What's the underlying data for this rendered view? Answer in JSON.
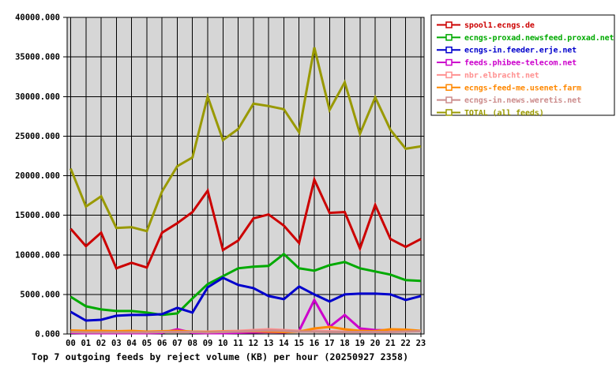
{
  "chart_data": {
    "type": "line",
    "title": "Top 7 outgoing feeds by reject volume (KB) per hour (20250927 2358)",
    "x_categories": [
      "00",
      "01",
      "02",
      "03",
      "04",
      "05",
      "06",
      "07",
      "08",
      "09",
      "10",
      "11",
      "12",
      "13",
      "14",
      "15",
      "16",
      "17",
      "18",
      "19",
      "20",
      "21",
      "22",
      "23"
    ],
    "y_ticks": [
      0,
      5000,
      10000,
      15000,
      20000,
      25000,
      30000,
      35000,
      40000
    ],
    "y_tick_labels": [
      "0.000",
      "5000.000",
      "10000.000",
      "15000.000",
      "20000.000",
      "25000.000",
      "30000.000",
      "35000.000",
      "40000.000"
    ],
    "ylim": [
      0,
      40000
    ],
    "grid": true,
    "plot_bg_color": "#d6d6d6",
    "grid_color": "#000000",
    "outer_bg_color": "#ffffff",
    "legend_position": "top-right-outside",
    "legend_bg_color": "#ffffff",
    "legend_border_color": "#000000",
    "series": [
      {
        "name": "spool1.ecngs.de",
        "color": "#cc0000",
        "values": [
          13300,
          11100,
          12800,
          8300,
          9000,
          8400,
          12800,
          14000,
          15400,
          18100,
          10600,
          11800,
          14600,
          15100,
          13700,
          11500,
          19500,
          15300,
          15400,
          10800,
          16300,
          12000,
          11000,
          12000
        ]
      },
      {
        "name": "ecngs-proxad.newsfeed.proxad.net",
        "color": "#00aa00",
        "values": [
          4700,
          3500,
          3100,
          2900,
          2900,
          2700,
          2400,
          2600,
          4500,
          6300,
          7300,
          8300,
          8500,
          8600,
          10100,
          8300,
          8000,
          8700,
          9100,
          8300,
          7900,
          7500,
          6800,
          6700
        ]
      },
      {
        "name": "ecngs-in.feeder.erje.net",
        "color": "#0000cc",
        "values": [
          2800,
          1700,
          1800,
          2300,
          2400,
          2400,
          2500,
          3300,
          2700,
          5900,
          7100,
          6200,
          5800,
          4800,
          4400,
          6000,
          5000,
          4100,
          5000,
          5100,
          5100,
          5000,
          4300,
          4800
        ]
      },
      {
        "name": "feeds.phibee-telecom.net",
        "color": "#cc00cc",
        "values": [
          150,
          100,
          100,
          100,
          100,
          100,
          150,
          600,
          150,
          100,
          100,
          150,
          200,
          250,
          200,
          400,
          4300,
          900,
          2400,
          700,
          500,
          450,
          450,
          350
        ]
      },
      {
        "name": "nbr.elbracht.net",
        "color": "#ff9090",
        "values": [
          400,
          350,
          300,
          300,
          300,
          250,
          300,
          350,
          300,
          300,
          350,
          400,
          500,
          600,
          500,
          400,
          400,
          350,
          300,
          300,
          300,
          300,
          350,
          400
        ]
      },
      {
        "name": "ecngs-feed-me.usenet.farm",
        "color": "#ff8800",
        "values": [
          450,
          400,
          400,
          350,
          400,
          300,
          350,
          400,
          300,
          250,
          300,
          300,
          350,
          300,
          250,
          300,
          700,
          900,
          600,
          400,
          350,
          600,
          550,
          400
        ]
      },
      {
        "name": "ecngs-in.news.weretis.net",
        "color": "#cc8c8c",
        "values": [
          250,
          200,
          200,
          200,
          200,
          200,
          250,
          250,
          250,
          200,
          250,
          300,
          400,
          450,
          400,
          300,
          300,
          250,
          250,
          250,
          250,
          250,
          300,
          350
        ]
      },
      {
        "name": "TOTAL (all feeds)",
        "color": "#999900",
        "values": [
          20900,
          16100,
          17400,
          13400,
          13500,
          13000,
          18000,
          21200,
          22300,
          30000,
          24500,
          25900,
          29100,
          28800,
          28400,
          25500,
          36200,
          28300,
          31800,
          25300,
          29900,
          25800,
          23400,
          23700
        ]
      }
    ]
  }
}
